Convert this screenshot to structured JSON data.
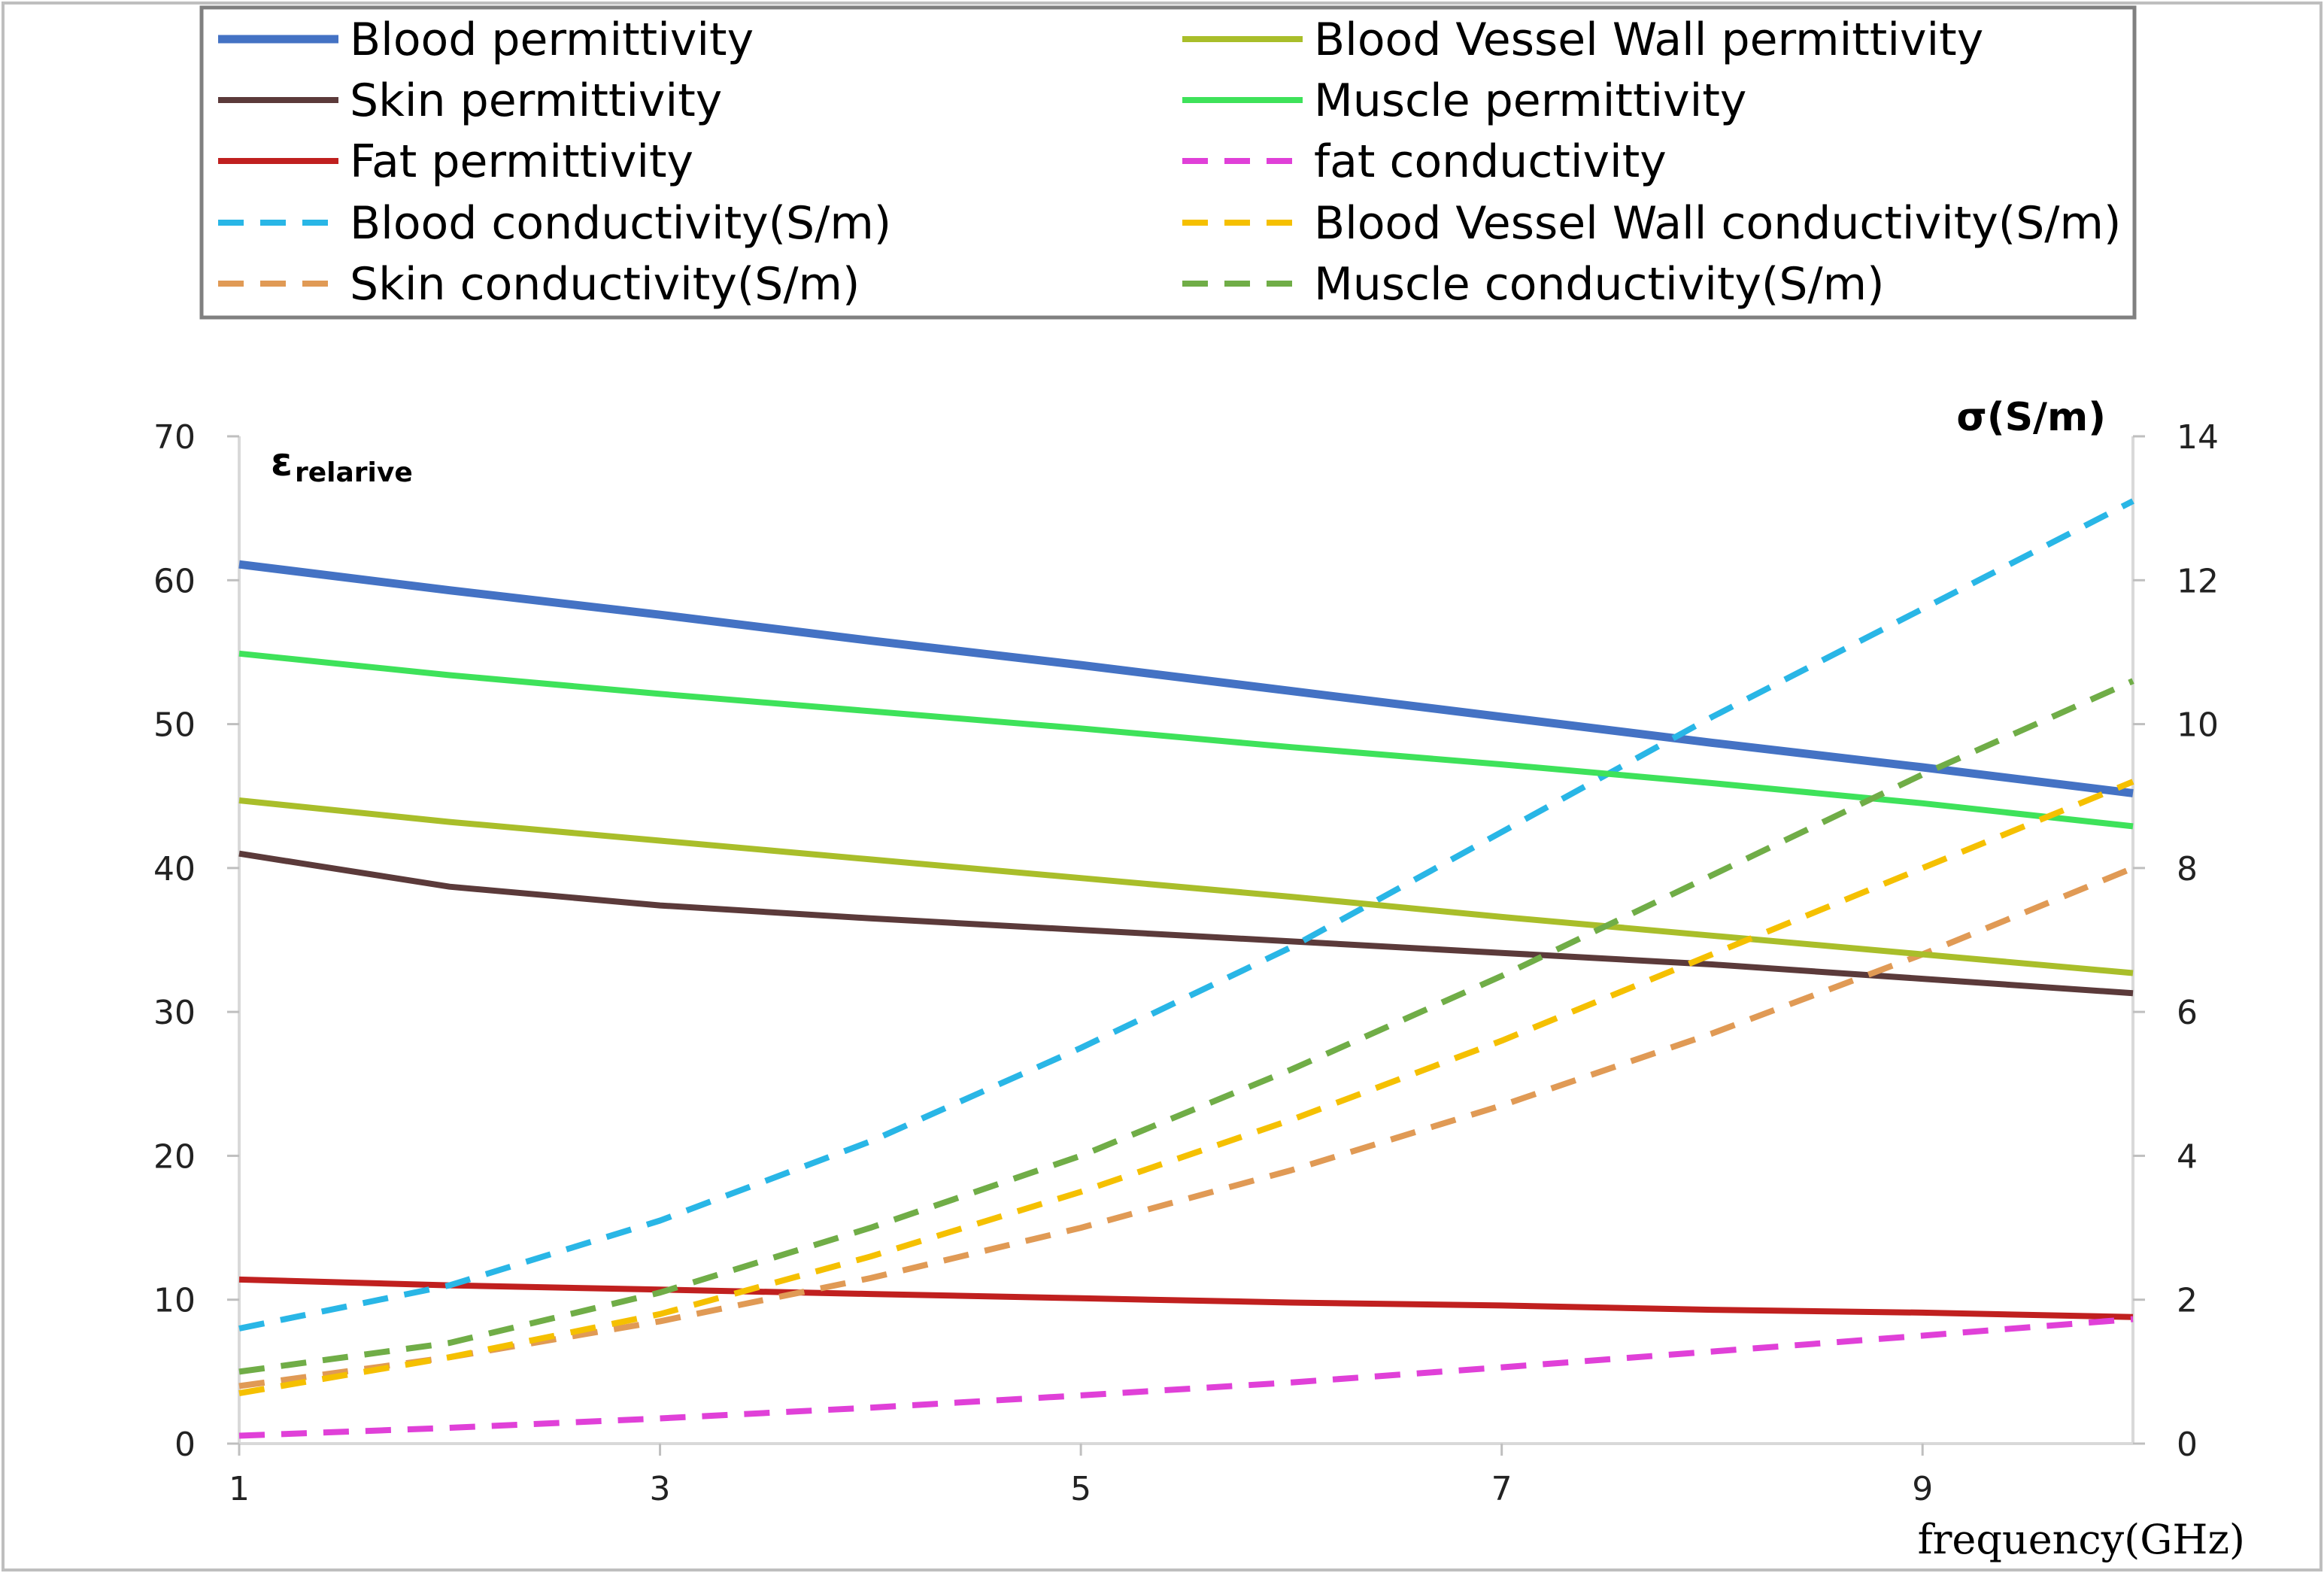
{
  "chart_data": {
    "type": "line",
    "title": "",
    "xlabel": "frequency(GHz)",
    "ylabel_left": {
      "main": "ε",
      "sub": "relarive"
    },
    "ylabel_right": "σ(S/m)",
    "xlim": [
      1,
      10
    ],
    "ylim_left": [
      0,
      70
    ],
    "ylim_right": [
      0,
      14
    ],
    "x_ticks": [
      "1",
      "3",
      "5",
      "7",
      "9"
    ],
    "y_left_ticks": [
      "0",
      "10",
      "20",
      "30",
      "40",
      "50",
      "60",
      "70"
    ],
    "y_right_ticks": [
      "0",
      "2",
      "4",
      "6",
      "8",
      "10",
      "12",
      "14"
    ],
    "legend_position": "top",
    "x": [
      1,
      2,
      3,
      4,
      5,
      6,
      7,
      8,
      9,
      10
    ],
    "series": [
      {
        "name": "Blood permittivity",
        "axis": "left",
        "style": "solid",
        "color": "#4472C4",
        "values": [
          61.1,
          59.3,
          57.6,
          55.8,
          54.1,
          52.3,
          50.5,
          48.7,
          47.0,
          45.2
        ]
      },
      {
        "name": "Skin permittivity",
        "axis": "left",
        "style": "solid",
        "color": "#5B3A3A",
        "values": [
          41.0,
          38.7,
          37.4,
          36.5,
          35.7,
          34.9,
          34.1,
          33.3,
          32.3,
          31.3
        ]
      },
      {
        "name": "Fat permittivity",
        "axis": "left",
        "style": "solid",
        "color": "#C0201F",
        "values": [
          11.4,
          11.0,
          10.7,
          10.4,
          10.1,
          9.8,
          9.6,
          9.3,
          9.1,
          8.8
        ]
      },
      {
        "name": "Blood conductivity(S/m)",
        "axis": "right",
        "style": "dashed",
        "color": "#29B6E6",
        "values": [
          1.6,
          2.2,
          3.1,
          4.2,
          5.5,
          6.9,
          8.5,
          10.1,
          11.6,
          13.1
        ]
      },
      {
        "name": "Skin conductivity(S/m)",
        "axis": "right",
        "style": "dashed",
        "color": "#E09A55",
        "values": [
          0.8,
          1.2,
          1.7,
          2.3,
          3.0,
          3.8,
          4.7,
          5.7,
          6.8,
          8.0
        ]
      },
      {
        "name": "Blood Vessel Wall permittivity",
        "axis": "left",
        "style": "solid",
        "color": "#A9BE2A",
        "values": [
          44.7,
          43.2,
          41.9,
          40.6,
          39.3,
          38.0,
          36.6,
          35.3,
          34.0,
          32.7
        ]
      },
      {
        "name": "Muscle permittivity",
        "axis": "left",
        "style": "solid",
        "color": "#3EE25A",
        "values": [
          54.9,
          53.4,
          52.1,
          50.9,
          49.7,
          48.4,
          47.2,
          45.9,
          44.5,
          42.9
        ]
      },
      {
        "name": "fat conductivity",
        "axis": "right",
        "style": "dashed",
        "color": "#E040D8",
        "values": [
          0.11,
          0.22,
          0.35,
          0.5,
          0.67,
          0.85,
          1.06,
          1.28,
          1.5,
          1.73
        ]
      },
      {
        "name": "Blood Vessel Wall conductivity(S/m)",
        "axis": "right",
        "style": "dashed",
        "color": "#F5C000",
        "values": [
          0.7,
          1.2,
          1.8,
          2.6,
          3.5,
          4.5,
          5.6,
          6.8,
          8.0,
          9.2
        ]
      },
      {
        "name": "Muscle conductivity(S/m)",
        "axis": "right",
        "style": "dashed",
        "color": "#70AD47",
        "values": [
          1.0,
          1.4,
          2.1,
          3.0,
          4.0,
          5.2,
          6.5,
          7.9,
          9.3,
          10.6
        ]
      }
    ]
  }
}
